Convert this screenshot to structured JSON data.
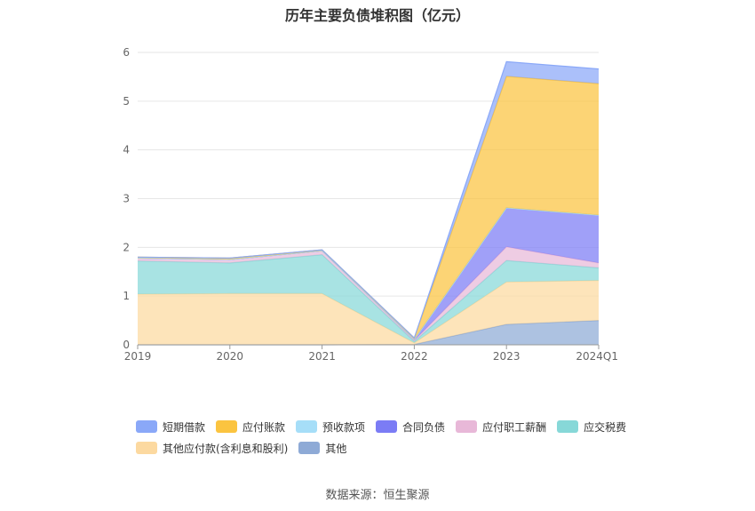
{
  "chart_data": {
    "type": "area",
    "stacked": true,
    "title": "历年主要负债堆积图（亿元）",
    "categories": [
      "2019",
      "2020",
      "2021",
      "2022",
      "2023",
      "2024Q1"
    ],
    "yticks": [
      "0",
      "1",
      "2",
      "3",
      "4",
      "5",
      "6"
    ],
    "ylim": [
      0,
      6
    ],
    "grid": true,
    "legend_position": "bottom",
    "series": [
      {
        "name": "其他",
        "color": "#8eaad6",
        "values": [
          0,
          0,
          0,
          0.01,
          0.42,
          0.5
        ]
      },
      {
        "name": "其他应付款(含利息和股利)",
        "color": "#fcd9a0",
        "values": [
          1.04,
          1.05,
          1.05,
          0.03,
          0.87,
          0.82
        ]
      },
      {
        "name": "应交税费",
        "color": "#87d8d8",
        "values": [
          0.68,
          0.63,
          0.8,
          0.03,
          0.44,
          0.26
        ]
      },
      {
        "name": "应付职工薪酬",
        "color": "#e8b8d8",
        "values": [
          0.06,
          0.07,
          0.08,
          0.02,
          0.28,
          0.1
        ]
      },
      {
        "name": "合同负债",
        "color": "#7b7cf5",
        "values": [
          0,
          0,
          0,
          0.02,
          0.8,
          0.98
        ]
      },
      {
        "name": "预收款项",
        "color": "#a6def8",
        "values": [
          0,
          0,
          0,
          0,
          0,
          0
        ]
      },
      {
        "name": "应付账款",
        "color": "#fbc440",
        "values": [
          0.02,
          0.03,
          0.02,
          0.03,
          2.7,
          2.7
        ]
      },
      {
        "name": "短期借款",
        "color": "#8aa8f8",
        "values": [
          0,
          0,
          0,
          0,
          0.3,
          0.3
        ]
      }
    ]
  },
  "legend": [
    {
      "name": "短期借款",
      "color": "#8aa8f8"
    },
    {
      "name": "应付账款",
      "color": "#fbc440"
    },
    {
      "name": "预收款项",
      "color": "#a6def8"
    },
    {
      "name": "合同负债",
      "color": "#7b7cf5"
    },
    {
      "name": "应付职工薪酬",
      "color": "#e8b8d8"
    },
    {
      "name": "应交税费",
      "color": "#87d8d8"
    },
    {
      "name": "其他应付款(含利息和股利)",
      "color": "#fcd9a0"
    },
    {
      "name": "其他",
      "color": "#8eaad6"
    }
  ],
  "source": "数据来源：恒生聚源"
}
